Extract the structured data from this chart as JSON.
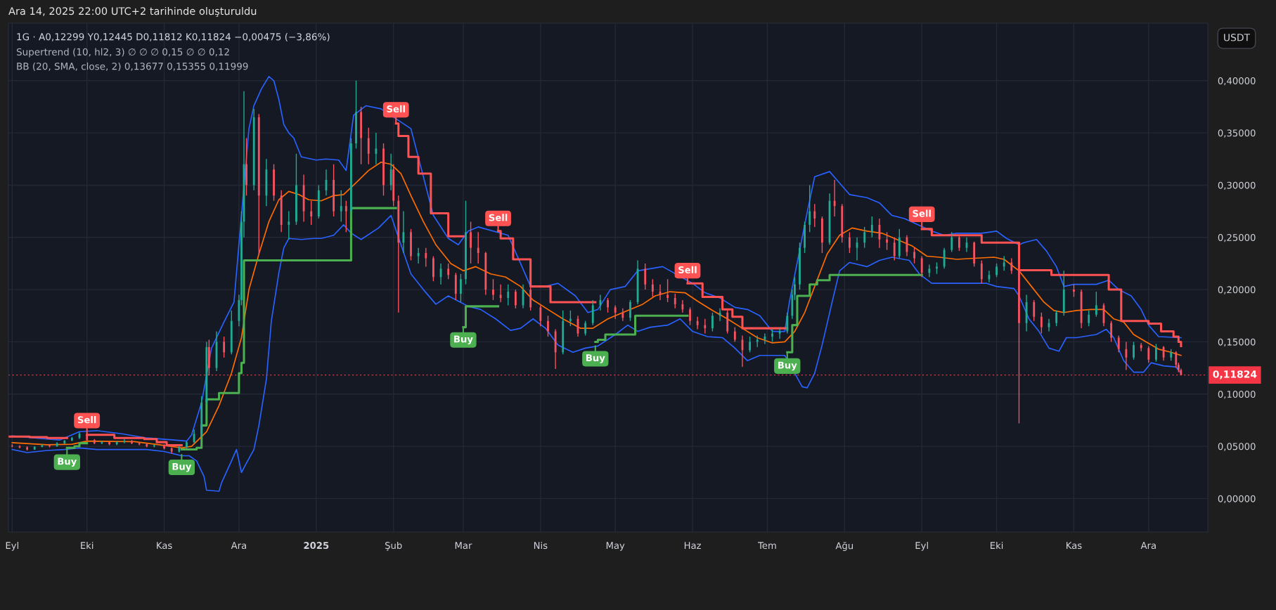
{
  "chart_data": {
    "type": "candlestick",
    "title": "Ara 14, 2025 22:00 UTC+2 tarihinde oluşturuldu",
    "subtitle": "1G · A0,12299 Y0,12445 D0,11812 K0,11824 −0,00475 (−3,86%)",
    "ylabel": "USDT",
    "annotations": [
      "Supertrend (10, hl2, 3) ∅ ∅ ∅ 0,15 ∅ ∅ 0,12",
      "BB (20, SMA, close, 2) 0,13677 0,15355 0,11999",
      {
        "text": "Buy",
        "x": "2024-09-23",
        "y": 0.047
      },
      {
        "text": "Sell",
        "x": "2024-10-01",
        "y": 0.0625
      },
      {
        "text": "Buy",
        "x": "2024-11-08",
        "y": 0.042
      },
      {
        "text": "Sell",
        "x": "2025-02-02",
        "y": 0.36
      },
      {
        "text": "Buy",
        "x": "2025-03-01",
        "y": 0.164
      },
      {
        "text": "Sell",
        "x": "2025-03-15",
        "y": 0.256
      },
      {
        "text": "Buy",
        "x": "2025-04-23",
        "y": 0.146
      },
      {
        "text": "Sell",
        "x": "2025-05-30",
        "y": 0.206
      },
      {
        "text": "Buy",
        "x": "2025-07-09",
        "y": 0.139
      },
      {
        "text": "Sell",
        "x": "2025-09-01",
        "y": 0.26
      }
    ],
    "x": [
      "2024-09-01",
      "2024-09-04",
      "2024-09-07",
      "2024-09-10",
      "2024-09-13",
      "2024-09-16",
      "2024-09-19",
      "2024-09-22",
      "2024-09-25",
      "2024-09-28",
      "2024-10-01",
      "2024-10-04",
      "2024-10-07",
      "2024-10-10",
      "2024-10-13",
      "2024-10-16",
      "2024-10-19",
      "2024-10-22",
      "2024-10-25",
      "2024-10-28",
      "2024-11-01",
      "2024-11-04",
      "2024-11-07",
      "2024-11-10",
      "2024-11-13",
      "2024-11-16",
      "2024-11-18",
      "2024-11-19",
      "2024-11-22",
      "2024-11-25",
      "2024-11-28",
      "2024-12-01",
      "2024-12-02",
      "2024-12-03",
      "2024-12-04",
      "2024-12-07",
      "2024-12-09",
      "2024-12-12",
      "2024-12-15",
      "2024-12-18",
      "2024-12-21",
      "2024-12-24",
      "2024-12-27",
      "2024-12-30",
      "2025-01-02",
      "2025-01-05",
      "2025-01-08",
      "2025-01-11",
      "2025-01-13",
      "2025-01-15",
      "2025-01-17",
      "2025-01-19",
      "2025-01-22",
      "2025-01-25",
      "2025-01-28",
      "2025-01-31",
      "2025-02-01",
      "2025-02-03",
      "2025-02-05",
      "2025-02-08",
      "2025-02-11",
      "2025-02-14",
      "2025-02-17",
      "2025-02-20",
      "2025-02-23",
      "2025-02-26",
      "2025-02-28",
      "2025-03-02",
      "2025-03-04",
      "2025-03-07",
      "2025-03-10",
      "2025-03-13",
      "2025-03-16",
      "2025-03-19",
      "2025-03-22",
      "2025-03-25",
      "2025-03-28",
      "2025-04-01",
      "2025-04-04",
      "2025-04-07",
      "2025-04-10",
      "2025-04-13",
      "2025-04-16",
      "2025-04-19",
      "2025-04-22",
      "2025-04-25",
      "2025-04-28",
      "2025-05-01",
      "2025-05-04",
      "2025-05-07",
      "2025-05-10",
      "2025-05-13",
      "2025-05-16",
      "2025-05-19",
      "2025-05-22",
      "2025-05-25",
      "2025-05-28",
      "2025-05-31",
      "2025-06-03",
      "2025-06-06",
      "2025-06-09",
      "2025-06-12",
      "2025-06-15",
      "2025-06-18",
      "2025-06-21",
      "2025-06-24",
      "2025-06-27",
      "2025-06-30",
      "2025-07-03",
      "2025-07-06",
      "2025-07-09",
      "2025-07-11",
      "2025-07-12",
      "2025-07-14",
      "2025-07-16",
      "2025-07-18",
      "2025-07-20",
      "2025-07-23",
      "2025-07-26",
      "2025-07-28",
      "2025-07-31",
      "2025-08-03",
      "2025-08-06",
      "2025-08-09",
      "2025-08-12",
      "2025-08-15",
      "2025-08-18",
      "2025-08-21",
      "2025-08-23",
      "2025-08-26",
      "2025-08-29",
      "2025-09-01",
      "2025-09-04",
      "2025-09-07",
      "2025-09-10",
      "2025-09-13",
      "2025-09-16",
      "2025-09-19",
      "2025-09-22",
      "2025-09-25",
      "2025-09-28",
      "2025-10-01",
      "2025-10-04",
      "2025-10-07",
      "2025-10-10",
      "2025-10-13",
      "2025-10-16",
      "2025-10-19",
      "2025-10-22",
      "2025-10-25",
      "2025-10-28",
      "2025-11-01",
      "2025-11-04",
      "2025-11-07",
      "2025-11-10",
      "2025-11-13",
      "2025-11-16",
      "2025-11-19",
      "2025-11-22",
      "2025-11-25",
      "2025-11-28",
      "2025-12-01",
      "2025-12-04",
      "2025-12-07",
      "2025-12-10",
      "2025-12-12",
      "2025-12-13",
      "2025-12-14"
    ],
    "ohlc": [
      [
        0.0505,
        0.052,
        0.049,
        0.05
      ],
      [
        0.05,
        0.051,
        0.048,
        0.049
      ],
      [
        0.049,
        0.05,
        0.046,
        0.047
      ],
      [
        0.047,
        0.05,
        0.0465,
        0.0495
      ],
      [
        0.0495,
        0.052,
        0.049,
        0.051
      ],
      [
        0.051,
        0.052,
        0.049,
        0.05
      ],
      [
        0.05,
        0.054,
        0.0495,
        0.053
      ],
      [
        0.053,
        0.056,
        0.052,
        0.0555
      ],
      [
        0.0555,
        0.059,
        0.055,
        0.058
      ],
      [
        0.058,
        0.0635,
        0.057,
        0.062
      ],
      [
        0.062,
        0.063,
        0.055,
        0.056
      ],
      [
        0.056,
        0.057,
        0.052,
        0.053
      ],
      [
        0.053,
        0.055,
        0.052,
        0.054
      ],
      [
        0.054,
        0.055,
        0.051,
        0.052
      ],
      [
        0.052,
        0.055,
        0.051,
        0.054
      ],
      [
        0.054,
        0.057,
        0.053,
        0.055
      ],
      [
        0.055,
        0.056,
        0.052,
        0.053
      ],
      [
        0.053,
        0.054,
        0.051,
        0.052
      ],
      [
        0.052,
        0.053,
        0.049,
        0.05
      ],
      [
        0.05,
        0.052,
        0.049,
        0.051
      ],
      [
        0.051,
        0.052,
        0.047,
        0.048
      ],
      [
        0.048,
        0.049,
        0.043,
        0.045
      ],
      [
        0.045,
        0.05,
        0.044,
        0.049
      ],
      [
        0.049,
        0.055,
        0.048,
        0.054
      ],
      [
        0.054,
        0.066,
        0.053,
        0.062
      ],
      [
        0.062,
        0.098,
        0.06,
        0.092
      ],
      [
        0.092,
        0.15,
        0.09,
        0.145
      ],
      [
        0.145,
        0.152,
        0.118,
        0.125
      ],
      [
        0.125,
        0.16,
        0.122,
        0.15
      ],
      [
        0.15,
        0.155,
        0.135,
        0.14
      ],
      [
        0.14,
        0.18,
        0.138,
        0.17
      ],
      [
        0.17,
        0.195,
        0.165,
        0.19
      ],
      [
        0.19,
        0.275,
        0.185,
        0.265
      ],
      [
        0.265,
        0.39,
        0.25,
        0.32
      ],
      [
        0.32,
        0.345,
        0.29,
        0.3
      ],
      [
        0.3,
        0.373,
        0.295,
        0.365
      ],
      [
        0.365,
        0.368,
        0.234,
        0.29
      ],
      [
        0.29,
        0.325,
        0.28,
        0.315
      ],
      [
        0.315,
        0.32,
        0.285,
        0.29
      ],
      [
        0.29,
        0.295,
        0.255,
        0.262
      ],
      [
        0.262,
        0.275,
        0.248,
        0.265
      ],
      [
        0.265,
        0.33,
        0.262,
        0.3
      ],
      [
        0.3,
        0.31,
        0.265,
        0.275
      ],
      [
        0.275,
        0.285,
        0.262,
        0.27
      ],
      [
        0.27,
        0.3,
        0.268,
        0.295
      ],
      [
        0.295,
        0.315,
        0.29,
        0.305
      ],
      [
        0.305,
        0.32,
        0.27,
        0.275
      ],
      [
        0.275,
        0.295,
        0.265,
        0.28
      ],
      [
        0.28,
        0.285,
        0.255,
        0.275
      ],
      [
        0.275,
        0.345,
        0.27,
        0.34
      ],
      [
        0.34,
        0.4,
        0.335,
        0.37
      ],
      [
        0.37,
        0.375,
        0.32,
        0.345
      ],
      [
        0.345,
        0.355,
        0.32,
        0.33
      ],
      [
        0.33,
        0.35,
        0.32,
        0.335
      ],
      [
        0.335,
        0.34,
        0.29,
        0.3
      ],
      [
        0.3,
        0.33,
        0.295,
        0.315
      ],
      [
        0.315,
        0.32,
        0.28,
        0.285
      ],
      [
        0.285,
        0.29,
        0.178,
        0.245
      ],
      [
        0.245,
        0.275,
        0.235,
        0.255
      ],
      [
        0.255,
        0.258,
        0.228,
        0.232
      ],
      [
        0.232,
        0.24,
        0.225,
        0.235
      ],
      [
        0.235,
        0.24,
        0.222,
        0.23
      ],
      [
        0.23,
        0.232,
        0.208,
        0.212
      ],
      [
        0.212,
        0.225,
        0.205,
        0.22
      ],
      [
        0.22,
        0.225,
        0.21,
        0.214
      ],
      [
        0.214,
        0.216,
        0.19,
        0.196
      ],
      [
        0.196,
        0.215,
        0.188,
        0.21
      ],
      [
        0.21,
        0.285,
        0.205,
        0.255
      ],
      [
        0.255,
        0.265,
        0.225,
        0.24
      ],
      [
        0.24,
        0.255,
        0.225,
        0.235
      ],
      [
        0.235,
        0.236,
        0.195,
        0.2
      ],
      [
        0.2,
        0.21,
        0.19,
        0.195
      ],
      [
        0.195,
        0.205,
        0.188,
        0.192
      ],
      [
        0.192,
        0.205,
        0.185,
        0.198
      ],
      [
        0.198,
        0.2,
        0.182,
        0.185
      ],
      [
        0.185,
        0.205,
        0.182,
        0.2
      ],
      [
        0.2,
        0.203,
        0.18,
        0.183
      ],
      [
        0.183,
        0.185,
        0.165,
        0.17
      ],
      [
        0.17,
        0.175,
        0.155,
        0.16
      ],
      [
        0.16,
        0.162,
        0.124,
        0.14
      ],
      [
        0.14,
        0.18,
        0.138,
        0.17
      ],
      [
        0.17,
        0.18,
        0.165,
        0.172
      ],
      [
        0.172,
        0.175,
        0.155,
        0.158
      ],
      [
        0.158,
        0.17,
        0.156,
        0.168
      ],
      [
        0.168,
        0.19,
        0.166,
        0.185
      ],
      [
        0.185,
        0.195,
        0.18,
        0.19
      ],
      [
        0.19,
        0.192,
        0.178,
        0.183
      ],
      [
        0.183,
        0.185,
        0.172,
        0.178
      ],
      [
        0.178,
        0.182,
        0.17,
        0.173
      ],
      [
        0.173,
        0.19,
        0.17,
        0.188
      ],
      [
        0.188,
        0.228,
        0.186,
        0.22
      ],
      [
        0.22,
        0.225,
        0.2,
        0.205
      ],
      [
        0.205,
        0.21,
        0.193,
        0.198
      ],
      [
        0.198,
        0.205,
        0.19,
        0.195
      ],
      [
        0.195,
        0.21,
        0.188,
        0.192
      ],
      [
        0.192,
        0.196,
        0.182,
        0.186
      ],
      [
        0.186,
        0.19,
        0.178,
        0.181
      ],
      [
        0.181,
        0.183,
        0.166,
        0.17
      ],
      [
        0.17,
        0.174,
        0.162,
        0.166
      ],
      [
        0.166,
        0.172,
        0.158,
        0.163
      ],
      [
        0.163,
        0.178,
        0.16,
        0.175
      ],
      [
        0.175,
        0.182,
        0.17,
        0.178
      ],
      [
        0.178,
        0.18,
        0.158,
        0.16
      ],
      [
        0.16,
        0.164,
        0.15,
        0.152
      ],
      [
        0.152,
        0.156,
        0.126,
        0.142
      ],
      [
        0.142,
        0.155,
        0.14,
        0.15
      ],
      [
        0.15,
        0.156,
        0.145,
        0.152
      ],
      [
        0.152,
        0.158,
        0.148,
        0.155
      ],
      [
        0.155,
        0.162,
        0.15,
        0.158
      ],
      [
        0.158,
        0.163,
        0.153,
        0.16
      ],
      [
        0.16,
        0.178,
        0.158,
        0.175
      ],
      [
        0.175,
        0.2,
        0.172,
        0.195
      ],
      [
        0.195,
        0.212,
        0.19,
        0.205
      ],
      [
        0.205,
        0.245,
        0.2,
        0.24
      ],
      [
        0.24,
        0.265,
        0.235,
        0.262
      ],
      [
        0.262,
        0.3,
        0.255,
        0.275
      ],
      [
        0.275,
        0.282,
        0.26,
        0.268
      ],
      [
        0.268,
        0.27,
        0.235,
        0.245
      ],
      [
        0.245,
        0.292,
        0.243,
        0.285
      ],
      [
        0.285,
        0.305,
        0.27,
        0.28
      ],
      [
        0.28,
        0.282,
        0.245,
        0.25
      ],
      [
        0.25,
        0.255,
        0.235,
        0.24
      ],
      [
        0.24,
        0.25,
        0.228,
        0.245
      ],
      [
        0.245,
        0.26,
        0.24,
        0.255
      ],
      [
        0.255,
        0.27,
        0.25,
        0.262
      ],
      [
        0.262,
        0.268,
        0.24,
        0.248
      ],
      [
        0.248,
        0.255,
        0.238,
        0.245
      ],
      [
        0.245,
        0.25,
        0.228,
        0.232
      ],
      [
        0.232,
        0.258,
        0.23,
        0.25
      ],
      [
        0.25,
        0.252,
        0.232,
        0.236
      ],
      [
        0.236,
        0.24,
        0.225,
        0.23
      ],
      [
        0.23,
        0.232,
        0.212,
        0.216
      ],
      [
        0.216,
        0.224,
        0.212,
        0.22
      ],
      [
        0.22,
        0.226,
        0.215,
        0.222
      ],
      [
        0.222,
        0.24,
        0.22,
        0.238
      ],
      [
        0.238,
        0.255,
        0.236,
        0.25
      ],
      [
        0.25,
        0.252,
        0.237,
        0.24
      ],
      [
        0.24,
        0.25,
        0.236,
        0.245
      ],
      [
        0.245,
        0.246,
        0.222,
        0.225
      ],
      [
        0.225,
        0.228,
        0.206,
        0.21
      ],
      [
        0.21,
        0.218,
        0.207,
        0.214
      ],
      [
        0.214,
        0.225,
        0.212,
        0.222
      ],
      [
        0.222,
        0.232,
        0.218,
        0.226
      ],
      [
        0.226,
        0.23,
        0.215,
        0.218
      ],
      [
        0.218,
        0.222,
        0.072,
        0.168
      ],
      [
        0.168,
        0.195,
        0.16,
        0.188
      ],
      [
        0.188,
        0.19,
        0.17,
        0.174
      ],
      [
        0.174,
        0.178,
        0.158,
        0.164
      ],
      [
        0.164,
        0.172,
        0.16,
        0.168
      ],
      [
        0.168,
        0.18,
        0.165,
        0.178
      ],
      [
        0.178,
        0.218,
        0.175,
        0.2
      ],
      [
        0.2,
        0.205,
        0.193,
        0.198
      ],
      [
        0.198,
        0.2,
        0.163,
        0.168
      ],
      [
        0.168,
        0.18,
        0.165,
        0.176
      ],
      [
        0.176,
        0.198,
        0.174,
        0.185
      ],
      [
        0.185,
        0.187,
        0.165,
        0.168
      ],
      [
        0.168,
        0.17,
        0.15,
        0.154
      ],
      [
        0.154,
        0.156,
        0.14,
        0.143
      ],
      [
        0.143,
        0.15,
        0.123,
        0.135
      ],
      [
        0.135,
        0.15,
        0.133,
        0.147
      ],
      [
        0.147,
        0.149,
        0.141,
        0.144
      ],
      [
        0.144,
        0.146,
        0.13,
        0.133
      ],
      [
        0.133,
        0.148,
        0.131,
        0.145
      ],
      [
        0.145,
        0.146,
        0.132,
        0.135
      ],
      [
        0.135,
        0.143,
        0.132,
        0.14
      ],
      [
        0.14,
        0.141,
        0.125,
        0.128
      ],
      [
        0.128,
        0.13,
        0.121,
        0.12299
      ],
      [
        0.12299,
        0.12445,
        0.11812,
        0.11824
      ]
    ],
    "colors": [
      "#f7525f",
      "#f7525f",
      "#f7525f",
      "#22ab94",
      "#22ab94",
      "#f7525f",
      "#22ab94",
      "#22ab94",
      "#22ab94",
      "#22ab94",
      "#f7525f",
      "#f7525f",
      "#22ab94",
      "#f7525f",
      "#22ab94",
      "#22ab94",
      "#f7525f",
      "#f7525f",
      "#f7525f",
      "#22ab94",
      "#f7525f",
      "#f7525f",
      "#22ab94",
      "#22ab94",
      "#22ab94",
      "#22ab94",
      "#22ab94",
      "#f7525f",
      "#22ab94",
      "#f7525f",
      "#22ab94",
      "#22ab94",
      "#22ab94",
      "#22ab94",
      "#f7525f",
      "#22ab94",
      "#f7525f",
      "#22ab94",
      "#f7525f",
      "#f7525f",
      "#22ab94",
      "#22ab94",
      "#f7525f",
      "#f7525f",
      "#22ab94",
      "#22ab94",
      "#f7525f",
      "#22ab94",
      "#f7525f",
      "#22ab94",
      "#22ab94",
      "#f7525f",
      "#f7525f",
      "#22ab94",
      "#f7525f",
      "#22ab94",
      "#f7525f",
      "#f7525f",
      "#22ab94",
      "#f7525f",
      "#22ab94",
      "#f7525f",
      "#f7525f",
      "#22ab94",
      "#f7525f",
      "#f7525f",
      "#22ab94",
      "#22ab94",
      "#f7525f",
      "#f7525f",
      "#f7525f",
      "#f7525f",
      "#f7525f",
      "#22ab94",
      "#f7525f",
      "#22ab94",
      "#f7525f",
      "#f7525f",
      "#f7525f",
      "#f7525f",
      "#22ab94",
      "#22ab94",
      "#f7525f",
      "#22ab94",
      "#22ab94",
      "#22ab94",
      "#f7525f",
      "#f7525f",
      "#f7525f",
      "#22ab94",
      "#22ab94",
      "#f7525f",
      "#f7525f",
      "#f7525f",
      "#f7525f",
      "#f7525f",
      "#f7525f",
      "#f7525f",
      "#f7525f",
      "#f7525f",
      "#22ab94",
      "#22ab94",
      "#f7525f",
      "#f7525f",
      "#f7525f",
      "#22ab94",
      "#22ab94",
      "#22ab94",
      "#22ab94",
      "#22ab94",
      "#22ab94",
      "#22ab94",
      "#22ab94",
      "#22ab94",
      "#22ab94",
      "#22ab94",
      "#f7525f",
      "#f7525f",
      "#22ab94",
      "#f7525f",
      "#f7525f",
      "#f7525f",
      "#22ab94",
      "#22ab94",
      "#22ab94",
      "#f7525f",
      "#f7525f",
      "#f7525f",
      "#22ab94",
      "#f7525f",
      "#f7525f",
      "#f7525f",
      "#22ab94",
      "#22ab94",
      "#22ab94",
      "#22ab94",
      "#f7525f",
      "#22ab94",
      "#f7525f",
      "#f7525f",
      "#22ab94",
      "#22ab94",
      "#22ab94",
      "#f7525f",
      "#f7525f",
      "#22ab94",
      "#f7525f",
      "#f7525f",
      "#22ab94",
      "#22ab94",
      "#22ab94",
      "#f7525f",
      "#f7525f",
      "#22ab94",
      "#22ab94",
      "#f7525f",
      "#f7525f",
      "#f7525f",
      "#f7525f",
      "#22ab94",
      "#f7525f",
      "#f7525f",
      "#22ab94",
      "#f7525f",
      "#22ab94",
      "#f7525f",
      "#f7525f",
      "#f7525f"
    ],
    "series": [
      {
        "type": "line",
        "color": "#2962ff",
        "x": [
          "2024-09-01",
          "2024-09-10",
          "2024-09-20",
          "2024-09-28",
          "2024-10-05",
          "2024-10-15",
          "2024-10-25",
          "2024-11-05",
          "2024-11-10",
          "2024-11-12",
          "2024-11-16",
          "2024-11-20",
          "2024-11-25",
          "2024-11-29",
          "2024-12-05",
          "2024-12-07",
          "2024-12-10",
          "2024-12-13",
          "2024-12-15",
          "2024-12-17",
          "2024-12-19",
          "2024-12-21",
          "2024-12-23",
          "2024-12-26",
          "2025-01-01",
          "2025-01-05",
          "2025-01-10",
          "2025-01-13",
          "2025-01-16",
          "2025-01-21",
          "2025-01-27",
          "2025-02-08",
          "2025-02-13",
          "2025-02-17",
          "2025-02-23",
          "2025-02-27",
          "2025-03-03",
          "2025-03-07",
          "2025-03-19",
          "2025-03-24",
          "2025-03-28",
          "2025-04-03",
          "2025-04-08",
          "2025-04-15",
          "2025-04-20",
          "2025-04-24",
          "2025-04-29",
          "2025-05-05",
          "2025-05-10",
          "2025-05-20",
          "2025-06-01",
          "2025-06-06",
          "2025-06-12",
          "2025-06-18",
          "2025-06-23",
          "2025-06-28",
          "2025-07-03",
          "2025-07-08",
          "2025-07-10",
          "2025-07-17",
          "2025-07-20",
          "2025-07-26",
          "2025-07-30",
          "2025-08-03",
          "2025-08-10",
          "2025-08-15",
          "2025-08-20",
          "2025-08-25",
          "2025-09-05",
          "2025-09-10",
          "2025-09-15",
          "2025-09-25",
          "2025-10-01",
          "2025-10-05",
          "2025-10-10",
          "2025-10-12",
          "2025-10-17",
          "2025-10-21",
          "2025-10-25",
          "2025-10-28",
          "2025-11-01",
          "2025-11-10",
          "2025-11-15",
          "2025-11-19",
          "2025-11-24",
          "2025-11-28",
          "2025-12-01",
          "2025-12-05",
          "2025-12-14"
        ],
        "values": [
          0.06,
          0.058,
          0.056,
          0.064,
          0.065,
          0.062,
          0.058,
          0.056,
          0.055,
          0.061,
          0.092,
          0.144,
          0.169,
          0.188,
          0.354,
          0.376,
          0.392,
          0.404,
          0.4,
          0.382,
          0.358,
          0.35,
          0.345,
          0.327,
          0.324,
          0.325,
          0.324,
          0.314,
          0.367,
          0.376,
          0.373,
          0.354,
          0.308,
          0.271,
          0.249,
          0.243,
          0.256,
          0.26,
          0.252,
          0.225,
          0.203,
          0.203,
          0.206,
          0.194,
          0.178,
          0.181,
          0.2,
          0.203,
          0.218,
          0.222,
          0.206,
          0.197,
          0.192,
          0.183,
          0.181,
          0.175,
          0.16,
          0.16,
          0.19,
          0.274,
          0.308,
          0.313,
          0.302,
          0.291,
          0.288,
          0.283,
          0.271,
          0.268,
          0.256,
          0.252,
          0.254,
          0.254,
          0.256,
          0.249,
          0.243,
          0.245,
          0.248,
          0.237,
          0.222,
          0.203,
          0.205,
          0.205,
          0.209,
          0.2,
          0.194,
          0.181,
          0.166,
          0.155,
          0.154
        ]
      },
      {
        "type": "line",
        "color": "#ff6d00",
        "x": [
          "2024-09-01",
          "2024-09-15",
          "2024-09-25",
          "2024-10-01",
          "2024-10-10",
          "2024-10-20",
          "2024-10-30",
          "2024-11-08",
          "2024-11-12",
          "2024-11-18",
          "2024-11-23",
          "2024-11-28",
          "2024-12-02",
          "2024-12-05",
          "2024-12-09",
          "2024-12-13",
          "2024-12-17",
          "2024-12-21",
          "2024-12-25",
          "2024-12-29",
          "2025-01-03",
          "2025-01-08",
          "2025-01-12",
          "2025-01-16",
          "2025-01-22",
          "2025-01-27",
          "2025-01-31",
          "2025-02-04",
          "2025-02-08",
          "2025-02-13",
          "2025-02-18",
          "2025-02-24",
          "2025-03-01",
          "2025-03-06",
          "2025-03-12",
          "2025-03-18",
          "2025-03-24",
          "2025-03-29",
          "2025-04-04",
          "2025-04-10",
          "2025-04-17",
          "2025-04-22",
          "2025-04-28",
          "2025-05-04",
          "2025-05-12",
          "2025-05-17",
          "2025-05-23",
          "2025-05-29",
          "2025-06-03",
          "2025-06-09",
          "2025-06-15",
          "2025-06-21",
          "2025-06-27",
          "2025-07-03",
          "2025-07-08",
          "2025-07-12",
          "2025-07-16",
          "2025-07-20",
          "2025-07-25",
          "2025-07-30",
          "2025-08-04",
          "2025-08-10",
          "2025-08-16",
          "2025-08-22",
          "2025-08-28",
          "2025-09-03",
          "2025-09-08",
          "2025-09-15",
          "2025-09-22",
          "2025-09-30",
          "2025-10-04",
          "2025-10-10",
          "2025-10-15",
          "2025-10-20",
          "2025-10-24",
          "2025-10-28",
          "2025-11-02",
          "2025-11-08",
          "2025-11-13",
          "2025-11-17",
          "2025-11-21",
          "2025-11-25",
          "2025-11-30",
          "2025-12-05",
          "2025-12-10",
          "2025-12-14"
        ],
        "values": [
          0.0535,
          0.0515,
          0.052,
          0.055,
          0.0547,
          0.0545,
          0.0515,
          0.0485,
          0.05,
          0.064,
          0.089,
          0.12,
          0.154,
          0.2,
          0.234,
          0.265,
          0.286,
          0.294,
          0.291,
          0.286,
          0.285,
          0.29,
          0.291,
          0.3,
          0.314,
          0.322,
          0.32,
          0.311,
          0.29,
          0.265,
          0.243,
          0.225,
          0.218,
          0.222,
          0.215,
          0.212,
          0.203,
          0.19,
          0.181,
          0.172,
          0.163,
          0.163,
          0.172,
          0.178,
          0.186,
          0.194,
          0.198,
          0.197,
          0.189,
          0.18,
          0.172,
          0.163,
          0.154,
          0.149,
          0.15,
          0.16,
          0.178,
          0.203,
          0.234,
          0.252,
          0.259,
          0.256,
          0.254,
          0.248,
          0.242,
          0.232,
          0.231,
          0.229,
          0.23,
          0.231,
          0.229,
          0.218,
          0.203,
          0.188,
          0.18,
          0.178,
          0.18,
          0.181,
          0.181,
          0.172,
          0.169,
          0.157,
          0.15,
          0.143,
          0.14,
          0.137
        ]
      },
      {
        "type": "line",
        "color": "#2962ff",
        "x": [
          "2024-09-01",
          "2024-09-07",
          "2024-09-15",
          "2024-09-22",
          "2024-09-28",
          "2024-10-05",
          "2024-10-15",
          "2024-10-25",
          "2024-11-01",
          "2024-11-08",
          "2024-11-11",
          "2024-11-14",
          "2024-11-17",
          "2024-11-18",
          "2024-11-23",
          "2024-11-24",
          "2024-11-28",
          "2024-11-30",
          "2024-12-02",
          "2024-12-04",
          "2024-12-07",
          "2024-12-09",
          "2024-12-12",
          "2024-12-14",
          "2024-12-17",
          "2024-12-19",
          "2024-12-21",
          "2024-12-26",
          "2024-12-31",
          "2025-01-03",
          "2025-01-08",
          "2025-01-12",
          "2025-01-15",
          "2025-01-19",
          "2025-01-26",
          "2025-01-31",
          "2025-02-04",
          "2025-02-08",
          "2025-02-13",
          "2025-02-18",
          "2025-02-23",
          "2025-02-27",
          "2025-03-03",
          "2025-03-08",
          "2025-03-14",
          "2025-03-20",
          "2025-03-24",
          "2025-03-29",
          "2025-04-03",
          "2025-04-08",
          "2025-04-14",
          "2025-04-19",
          "2025-04-24",
          "2025-05-01",
          "2025-05-06",
          "2025-05-10",
          "2025-05-15",
          "2025-05-22",
          "2025-05-27",
          "2025-06-01",
          "2025-06-07",
          "2025-06-13",
          "2025-06-18",
          "2025-06-23",
          "2025-06-28",
          "2025-07-03",
          "2025-07-08",
          "2025-07-12",
          "2025-07-15",
          "2025-07-17",
          "2025-07-20",
          "2025-07-23",
          "2025-07-27",
          "2025-07-30",
          "2025-08-03",
          "2025-08-10",
          "2025-08-15",
          "2025-08-20",
          "2025-08-27",
          "2025-08-31",
          "2025-09-05",
          "2025-09-15",
          "2025-09-22",
          "2025-09-27",
          "2025-10-01",
          "2025-10-08",
          "2025-10-10",
          "2025-10-14",
          "2025-10-18",
          "2025-10-22",
          "2025-10-26",
          "2025-10-29",
          "2025-11-02",
          "2025-11-10",
          "2025-11-14",
          "2025-11-17",
          "2025-11-21",
          "2025-11-25",
          "2025-11-29",
          "2025-12-02",
          "2025-12-07",
          "2025-12-12",
          "2025-12-14"
        ],
        "values": [
          0.047,
          0.044,
          0.046,
          0.047,
          0.0485,
          0.047,
          0.047,
          0.047,
          0.045,
          0.041,
          0.041,
          0.036,
          0.021,
          0.008,
          0.007,
          0.015,
          0.036,
          0.047,
          0.025,
          0.034,
          0.047,
          0.07,
          0.114,
          0.17,
          0.216,
          0.24,
          0.249,
          0.248,
          0.249,
          0.249,
          0.252,
          0.262,
          0.254,
          0.248,
          0.259,
          0.271,
          0.243,
          0.215,
          0.2,
          0.186,
          0.194,
          0.189,
          0.184,
          0.181,
          0.172,
          0.161,
          0.163,
          0.172,
          0.163,
          0.147,
          0.14,
          0.144,
          0.146,
          0.157,
          0.166,
          0.16,
          0.164,
          0.166,
          0.172,
          0.16,
          0.155,
          0.154,
          0.144,
          0.132,
          0.137,
          0.137,
          0.137,
          0.12,
          0.107,
          0.106,
          0.12,
          0.147,
          0.188,
          0.218,
          0.226,
          0.222,
          0.228,
          0.231,
          0.228,
          0.215,
          0.206,
          0.206,
          0.206,
          0.206,
          0.203,
          0.201,
          0.194,
          0.172,
          0.16,
          0.144,
          0.141,
          0.154,
          0.154,
          0.157,
          0.162,
          0.154,
          0.132,
          0.121,
          0.121,
          0.13,
          0.127,
          0.126,
          0.12
        ]
      },
      {
        "type": "step",
        "color": "#ff5252",
        "x": [
          "2024-08-31",
          "2024-09-08",
          "2024-09-15",
          "2024-09-23"
        ],
        "values": [
          0.0593,
          0.0588,
          0.058,
          0.058
        ]
      },
      {
        "type": "step",
        "color": "#4caf50",
        "x": [
          "2024-09-23",
          "2024-09-26",
          "2024-09-28",
          "2024-10-01"
        ],
        "values": [
          0.0485,
          0.05,
          0.053,
          0.053
        ]
      },
      {
        "type": "step",
        "color": "#ff5252",
        "x": [
          "2024-10-01",
          "2024-10-12",
          "2024-10-24",
          "2024-10-29",
          "2024-11-02",
          "2024-11-08"
        ],
        "values": [
          0.061,
          0.058,
          0.057,
          0.054,
          0.051,
          0.051
        ]
      },
      {
        "type": "step",
        "color": "#4caf50",
        "x": [
          "2024-11-08",
          "2024-11-14",
          "2024-11-16",
          "2024-11-18",
          "2024-11-23",
          "2024-12-01",
          "2024-12-02",
          "2024-12-03",
          "2025-01-15",
          "2025-02-02"
        ],
        "values": [
          0.047,
          0.0485,
          0.07,
          0.095,
          0.101,
          0.12,
          0.13,
          0.228,
          0.278,
          0.278
        ]
      },
      {
        "type": "step",
        "color": "#ff5252",
        "x": [
          "2025-02-02",
          "2025-02-03",
          "2025-02-07",
          "2025-02-11",
          "2025-02-16",
          "2025-02-23",
          "2025-03-01"
        ],
        "values": [
          0.359,
          0.347,
          0.327,
          0.311,
          0.273,
          0.251,
          0.251
        ]
      },
      {
        "type": "step",
        "color": "#4caf50",
        "x": [
          "2025-03-01",
          "2025-03-02",
          "2025-03-15"
        ],
        "values": [
          0.164,
          0.184,
          0.184
        ]
      },
      {
        "type": "step",
        "color": "#ff5252",
        "x": [
          "2025-03-15",
          "2025-03-16",
          "2025-03-21",
          "2025-03-28",
          "2025-04-05",
          "2025-04-23"
        ],
        "values": [
          0.256,
          0.249,
          0.229,
          0.203,
          0.188,
          0.188
        ]
      },
      {
        "type": "step",
        "color": "#4caf50",
        "x": [
          "2025-04-23",
          "2025-04-24",
          "2025-04-27",
          "2025-05-09",
          "2025-05-30"
        ],
        "values": [
          0.15,
          0.152,
          0.157,
          0.175,
          0.175
        ]
      },
      {
        "type": "step",
        "color": "#ff5252",
        "x": [
          "2025-05-30",
          "2025-06-05",
          "2025-06-13",
          "2025-06-17",
          "2025-06-21",
          "2025-07-09"
        ],
        "values": [
          0.206,
          0.193,
          0.181,
          0.174,
          0.163,
          0.163
        ]
      },
      {
        "type": "step",
        "color": "#4caf50",
        "x": [
          "2025-07-09",
          "2025-07-11",
          "2025-07-13",
          "2025-07-18",
          "2025-07-21",
          "2025-07-26",
          "2025-09-01"
        ],
        "values": [
          0.14,
          0.166,
          0.194,
          0.205,
          0.209,
          0.214,
          0.214
        ]
      },
      {
        "type": "step",
        "color": "#ff5252",
        "x": [
          "2025-09-01",
          "2025-09-05",
          "2025-09-25",
          "2025-10-10",
          "2025-10-23",
          "2025-11-15",
          "2025-11-20",
          "2025-12-01",
          "2025-12-06",
          "2025-12-11",
          "2025-12-13",
          "2025-12-14"
        ],
        "values": [
          0.258,
          0.252,
          0.245,
          0.2185,
          0.214,
          0.2,
          0.17,
          0.1675,
          0.16,
          0.155,
          0.15,
          0.146
        ]
      }
    ],
    "xlim": [
      "2024-08-30T12:00",
      "2025-12-24T18:00"
    ],
    "xticks": [
      {
        "value": "2024-09-01",
        "label": "Eyl"
      },
      {
        "value": "2024-10-01",
        "label": "Eki"
      },
      {
        "value": "2024-11-01",
        "label": "Kas"
      },
      {
        "value": "2024-12-01",
        "label": "Ara"
      },
      {
        "value": "2025-01-01",
        "label": "2025"
      },
      {
        "value": "2025-02-01",
        "label": "Şub"
      },
      {
        "value": "2025-03-01",
        "label": "Mar"
      },
      {
        "value": "2025-04-01",
        "label": "Nis"
      },
      {
        "value": "2025-05-01",
        "label": "May"
      },
      {
        "value": "2025-06-01",
        "label": "Haz"
      },
      {
        "value": "2025-07-01",
        "label": "Tem"
      },
      {
        "value": "2025-08-01",
        "label": "Ağu"
      },
      {
        "value": "2025-09-01",
        "label": "Eyl"
      },
      {
        "value": "2025-10-01",
        "label": "Eki"
      },
      {
        "value": "2025-11-01",
        "label": "Kas"
      },
      {
        "value": "2025-12-01",
        "label": "Ara"
      }
    ],
    "ylim": [
      -0.032,
      0.455
    ],
    "yticks": [
      {
        "value": 0,
        "label": "0,00000"
      },
      {
        "value": 0.05,
        "label": "0,05000"
      },
      {
        "value": 0.1,
        "label": "0,10000"
      },
      {
        "value": 0.15,
        "label": "0,15000"
      },
      {
        "value": 0.2,
        "label": "0,20000"
      },
      {
        "value": 0.25,
        "label": "0,25000"
      },
      {
        "value": 0.3,
        "label": "0,30000"
      },
      {
        "value": 0.35,
        "label": "0,35000"
      },
      {
        "value": 0.4,
        "label": "0,40000"
      }
    ],
    "ref_lines": [
      {
        "axis": "y",
        "value": 0.11824,
        "label": "0,11824",
        "color": "#f23645",
        "line_style": "dotted"
      }
    ],
    "grid": true
  }
}
